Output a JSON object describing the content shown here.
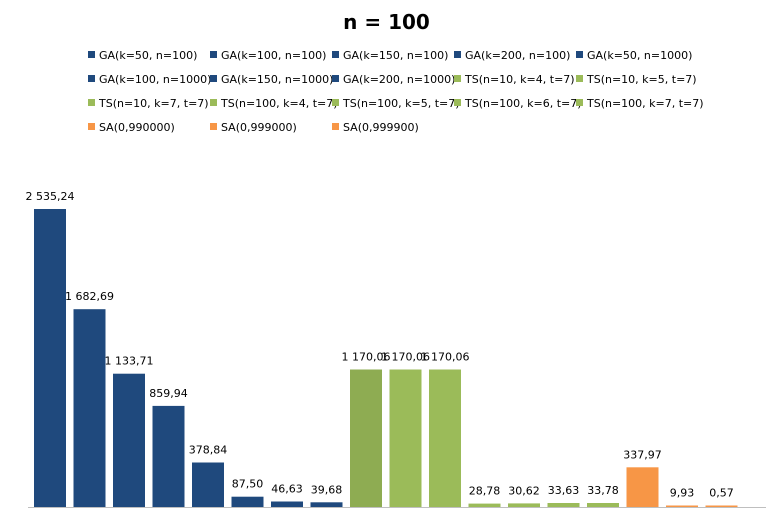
{
  "chart_data": {
    "type": "bar",
    "title": "n = 100",
    "xlabel": "",
    "ylabel": "",
    "ylim": [
      0,
      2535.24
    ],
    "grid": false,
    "legend_placement": "top",
    "colors": {
      "GA": "#1f497d",
      "TS": "#9bbb59",
      "TS_highlight": "#8eac52",
      "SA": "#f79646"
    },
    "series": [
      {
        "name": "GA(k=50, n=100)",
        "value": 2535.24,
        "label": "2 535,24",
        "group": "GA"
      },
      {
        "name": "GA(k=100, n=100)",
        "value": 1682.69,
        "label": "1 682,69",
        "group": "GA"
      },
      {
        "name": "GA(k=150, n=100)",
        "value": 1133.71,
        "label": "1 133,71",
        "group": "GA"
      },
      {
        "name": "GA(k=200, n=100)",
        "value": 859.94,
        "label": "859,94",
        "group": "GA"
      },
      {
        "name": "GA(k=50, n=1000)",
        "value": 378.84,
        "label": "378,84",
        "group": "GA"
      },
      {
        "name": "GA(k=100, n=1000)",
        "value": 87.5,
        "label": "87,50",
        "group": "GA"
      },
      {
        "name": "GA(k=150, n=1000)",
        "value": 46.63,
        "label": "46,63",
        "group": "GA"
      },
      {
        "name": "GA(k=200, n=1000)",
        "value": 39.68,
        "label": "39,68",
        "group": "GA"
      },
      {
        "name": "TS(n=10, k=4, t=7)",
        "value": 1170.06,
        "label": "1 170,06",
        "group": "TS_highlight"
      },
      {
        "name": "TS(n=10, k=5, t=7)",
        "value": 1170.06,
        "label": "1 170,06",
        "group": "TS"
      },
      {
        "name": "TS(n=10, k=7, t=7)",
        "value": 1170.06,
        "label": "1 170,06",
        "group": "TS"
      },
      {
        "name": "TS(n=100, k=4, t=7)",
        "value": 28.78,
        "label": "28,78",
        "group": "TS"
      },
      {
        "name": "TS(n=100, k=5, t=7)",
        "value": 30.62,
        "label": "30,62",
        "group": "TS"
      },
      {
        "name": "TS(n=100, k=6, t=7)",
        "value": 33.63,
        "label": "33,63",
        "group": "TS"
      },
      {
        "name": "TS(n=100, k=7, t=7)",
        "value": 33.78,
        "label": "33,78",
        "group": "TS"
      },
      {
        "name": "SA(0,990000)",
        "value": 337.97,
        "label": "337,97",
        "group": "SA"
      },
      {
        "name": "SA(0,999000)",
        "value": 9.93,
        "label": "9,93",
        "group": "SA"
      },
      {
        "name": "SA(0,999900)",
        "value": 0.57,
        "label": "0,57",
        "group": "SA"
      }
    ]
  }
}
